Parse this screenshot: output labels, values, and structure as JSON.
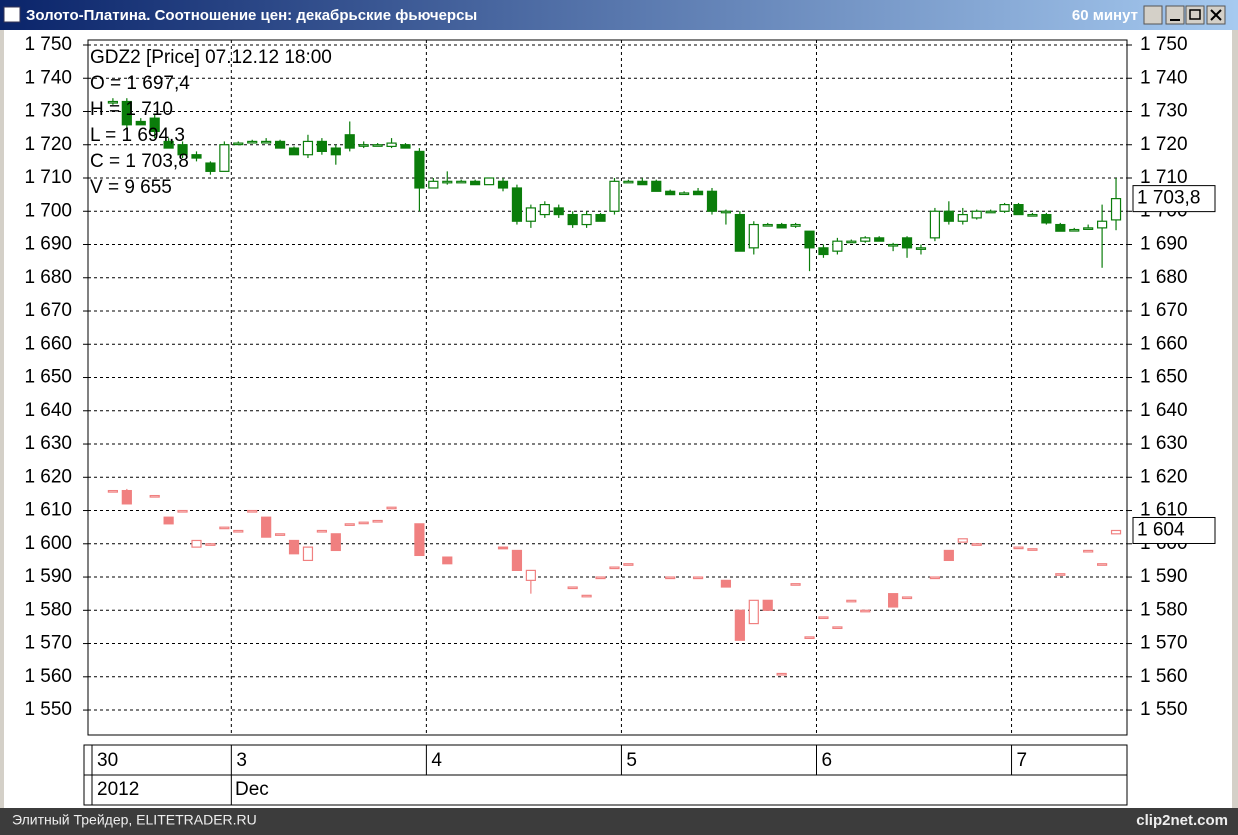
{
  "window": {
    "title": "Золото-Платина. Соотношение цен: декабрьские фьючерсы",
    "interval": "60 минут"
  },
  "footer": {
    "left": "Элитный Трейдер, ELITETRADER.RU",
    "right": "clip2net.com"
  },
  "chart_data": {
    "type": "candlestick",
    "info": {
      "header": "GDZ2 [Price] 07.12.12 18:00",
      "lines": [
        "O = 1 697,4",
        "H = 1 710",
        "L = 1 694,3",
        "C = 1 703,8",
        "V = 9 655"
      ]
    },
    "categories": [
      "30",
      null,
      null,
      null,
      null,
      null,
      null,
      null,
      null,
      null,
      "3",
      null,
      null,
      null,
      null,
      null,
      null,
      null,
      null,
      null,
      null,
      null,
      null,
      null,
      "4",
      null,
      null,
      null,
      null,
      null,
      null,
      null,
      null,
      null,
      null,
      null,
      null,
      null,
      "5",
      null,
      null,
      null,
      null,
      null,
      null,
      null,
      null,
      null,
      null,
      null,
      null,
      null,
      "6",
      null,
      null,
      null,
      null,
      null,
      null,
      null,
      null,
      null,
      null,
      null,
      null,
      null,
      "7",
      null,
      null,
      null,
      null,
      null,
      null,
      null
    ],
    "year": "2012",
    "month": "Dec",
    "ylim": [
      1542.5,
      1751.5
    ],
    "yticks": [
      {
        "value": 1550,
        "label": "1 550"
      },
      {
        "value": 1560,
        "label": "1 560"
      },
      {
        "value": 1570,
        "label": "1 570"
      },
      {
        "value": 1580,
        "label": "1 580"
      },
      {
        "value": 1590,
        "label": "1 590"
      },
      {
        "value": 1600,
        "label": "1 600"
      },
      {
        "value": 1610,
        "label": "1 610"
      },
      {
        "value": 1620,
        "label": "1 620"
      },
      {
        "value": 1630,
        "label": "1 630"
      },
      {
        "value": 1640,
        "label": "1 640"
      },
      {
        "value": 1650,
        "label": "1 650"
      },
      {
        "value": 1660,
        "label": "1 660"
      },
      {
        "value": 1670,
        "label": "1 670"
      },
      {
        "value": 1680,
        "label": "1 680"
      },
      {
        "value": 1690,
        "label": "1 690"
      },
      {
        "value": 1700,
        "label": "1 700"
      },
      {
        "value": 1710,
        "label": "1 710"
      },
      {
        "value": 1720,
        "label": "1 720"
      },
      {
        "value": 1730,
        "label": "1 730"
      },
      {
        "value": 1740,
        "label": "1 740"
      },
      {
        "value": 1750,
        "label": "1 750"
      }
    ],
    "grid": true,
    "series": [
      {
        "color": "#0b7d0b",
        "last_label": "1 703,8",
        "open": [
          null,
          1733,
          1733,
          1727,
          1728,
          1721,
          1720,
          1717,
          1714.5,
          1712,
          1720.5,
          1721,
          1721,
          1721,
          1719,
          1717,
          1721,
          1719,
          1723,
          1720,
          1720,
          1719.5,
          1720,
          1718,
          1707,
          1709,
          1709,
          1709,
          1708,
          1709,
          1707,
          1697,
          1699,
          1701,
          1699,
          1696,
          1699,
          1700,
          1709,
          1709,
          1709,
          1706,
          1705.5,
          1706,
          1706,
          1700,
          1699,
          1689,
          1696,
          1696,
          1695.5,
          1694,
          1689,
          1688,
          1691,
          1691,
          1692,
          1690,
          1692,
          1689,
          1692,
          1700,
          1697,
          1698,
          1700,
          1700,
          1702,
          1699,
          1699,
          1696,
          1694.5,
          1695,
          1695,
          1697.4
        ],
        "high": [
          null,
          1734,
          1734,
          1728,
          1729,
          1722,
          1721,
          1718,
          1715,
          1721,
          1721,
          1721.5,
          1722,
          1721.5,
          1719.5,
          1723,
          1722,
          1720,
          1727,
          1721,
          1720.5,
          1722,
          1720.5,
          1719,
          1710,
          1712,
          1709.5,
          1709.5,
          1710,
          1710,
          1708,
          1702,
          1703,
          1702,
          1700,
          1700,
          1699.5,
          1710,
          1709.5,
          1710,
          1709.5,
          1706.5,
          1706,
          1707,
          1707,
          1700.5,
          1700,
          1697,
          1696.5,
          1696.5,
          1696.5,
          1694,
          1690,
          1692,
          1691.5,
          1692.5,
          1692.5,
          1690.5,
          1692.5,
          1690,
          1701,
          1703,
          1701,
          1700.5,
          1700.5,
          1702.5,
          1702.5,
          1699.5,
          1699.5,
          1696.5,
          1695,
          1696,
          1702,
          1710
        ],
        "low": [
          null,
          1732,
          1725,
          1726,
          1722,
          1719,
          1716,
          1715,
          1711,
          1712,
          1720,
          1720.5,
          1720.5,
          1719,
          1717,
          1716,
          1717,
          1714,
          1718,
          1719,
          1719.5,
          1719,
          1719,
          1700,
          1707,
          1708,
          1708.5,
          1708,
          1708,
          1706,
          1696,
          1695,
          1698,
          1698,
          1695,
          1695,
          1697,
          1699,
          1708.5,
          1708,
          1706,
          1705,
          1705,
          1705,
          1699,
          1696,
          1688,
          1687,
          1695.5,
          1695,
          1695,
          1682,
          1686,
          1687,
          1690.5,
          1690.5,
          1691,
          1688,
          1686,
          1687,
          1691,
          1696,
          1696,
          1697.5,
          1699.5,
          1699.5,
          1699,
          1698.5,
          1696,
          1694,
          1694,
          1694.5,
          1683,
          1694.3
        ],
        "close": [
          null,
          1733,
          1726,
          1726,
          1724,
          1719,
          1717,
          1716,
          1712,
          1720,
          1720.5,
          1721,
          1721,
          1719,
          1717,
          1721,
          1718,
          1717,
          1719,
          1720,
          1720,
          1720.5,
          1719,
          1707,
          1709,
          1709,
          1709,
          1708,
          1710,
          1707,
          1697,
          1701,
          1702,
          1699,
          1696,
          1699,
          1697,
          1709,
          1709,
          1708,
          1706,
          1705,
          1705.5,
          1705,
          1700,
          1700,
          1688,
          1696,
          1696,
          1695,
          1696,
          1689,
          1687,
          1691,
          1691,
          1692,
          1691,
          1690,
          1689,
          1689,
          1700,
          1697,
          1699,
          1700,
          1700,
          1702,
          1699,
          1699,
          1696.5,
          1694,
          1694.5,
          1695,
          1697,
          1703.8
        ]
      },
      {
        "color": "#f08080",
        "last_label": "1 604",
        "open": [
          null,
          1616,
          1616,
          null,
          1614.5,
          1608,
          1610,
          1599,
          1600,
          1605,
          1604,
          1610,
          1608,
          1603,
          1601,
          1595,
          1604,
          1603,
          1606,
          1606.5,
          1607,
          1611,
          null,
          1606,
          null,
          1596,
          null,
          null,
          null,
          1599,
          1598,
          1589,
          null,
          null,
          1587,
          1584.5,
          1590,
          1593,
          1594,
          null,
          null,
          1590,
          null,
          1590,
          null,
          1589,
          1580,
          1576,
          1583,
          1561,
          1588,
          1572,
          1578,
          1575,
          1583,
          1580,
          null,
          1585,
          1584,
          null,
          1590,
          1598,
          1600.5,
          1600,
          null,
          null,
          1599,
          1598.5,
          null,
          1591,
          null,
          1598,
          1594,
          1603
        ],
        "high": [
          null,
          1616,
          1616.5,
          null,
          1614.5,
          1608,
          1610,
          1601,
          1600,
          1605,
          1604,
          1610,
          1608,
          1603,
          1601,
          1599,
          1604,
          1603,
          1606,
          1606.5,
          1607,
          1611,
          null,
          1606,
          null,
          1596,
          null,
          null,
          null,
          1599,
          1598,
          1592,
          null,
          null,
          1587,
          1584.5,
          1590,
          1593,
          1594,
          null,
          null,
          1590,
          null,
          1590,
          null,
          1589,
          1580,
          1583,
          1583,
          1561,
          1588,
          1572,
          1578,
          1575,
          1583,
          1580,
          null,
          1585,
          1584,
          null,
          1590,
          1598,
          1601.5,
          1600,
          null,
          null,
          1599,
          1598.5,
          null,
          1591,
          null,
          1598,
          1594,
          1604
        ],
        "low": [
          null,
          1616,
          1612,
          null,
          1614.5,
          1606,
          1610,
          1599,
          1600,
          1605,
          1604,
          1610,
          1602,
          1603,
          1597,
          1595,
          1604,
          1598,
          1606,
          1606.5,
          1607,
          1611,
          null,
          1596.5,
          null,
          1594,
          null,
          null,
          null,
          1598.5,
          1592,
          1585,
          null,
          null,
          1587,
          1584.5,
          1590,
          1593,
          1594,
          null,
          null,
          1590,
          null,
          1590,
          null,
          1587,
          1571,
          1576,
          1580,
          1561,
          1588,
          1572,
          1578,
          1575,
          1583,
          1580,
          null,
          1581,
          1584,
          null,
          1590,
          1595,
          1600.5,
          1600,
          null,
          null,
          1599,
          1598.5,
          null,
          1591,
          null,
          1598,
          1594,
          1603
        ],
        "close": [
          null,
          1616,
          1612,
          null,
          1614.5,
          1606,
          1610,
          1601,
          1600,
          1605,
          1604,
          1610,
          1602,
          1603,
          1597,
          1599,
          1604,
          1598,
          1606,
          1606.5,
          1607,
          1611,
          null,
          1596.5,
          null,
          1594,
          null,
          null,
          null,
          1598.5,
          1592,
          1592,
          null,
          null,
          1587,
          1584.5,
          1590,
          1593,
          1594,
          null,
          null,
          1590,
          null,
          1590,
          null,
          1587,
          1571,
          1583,
          1580,
          1561,
          1588,
          1572,
          1578,
          1575,
          1583,
          1580,
          null,
          1581,
          1584,
          null,
          1590,
          1595,
          1601.5,
          1600,
          null,
          null,
          1599,
          1598.5,
          null,
          1591,
          null,
          1598,
          1594,
          1604
        ]
      }
    ]
  }
}
